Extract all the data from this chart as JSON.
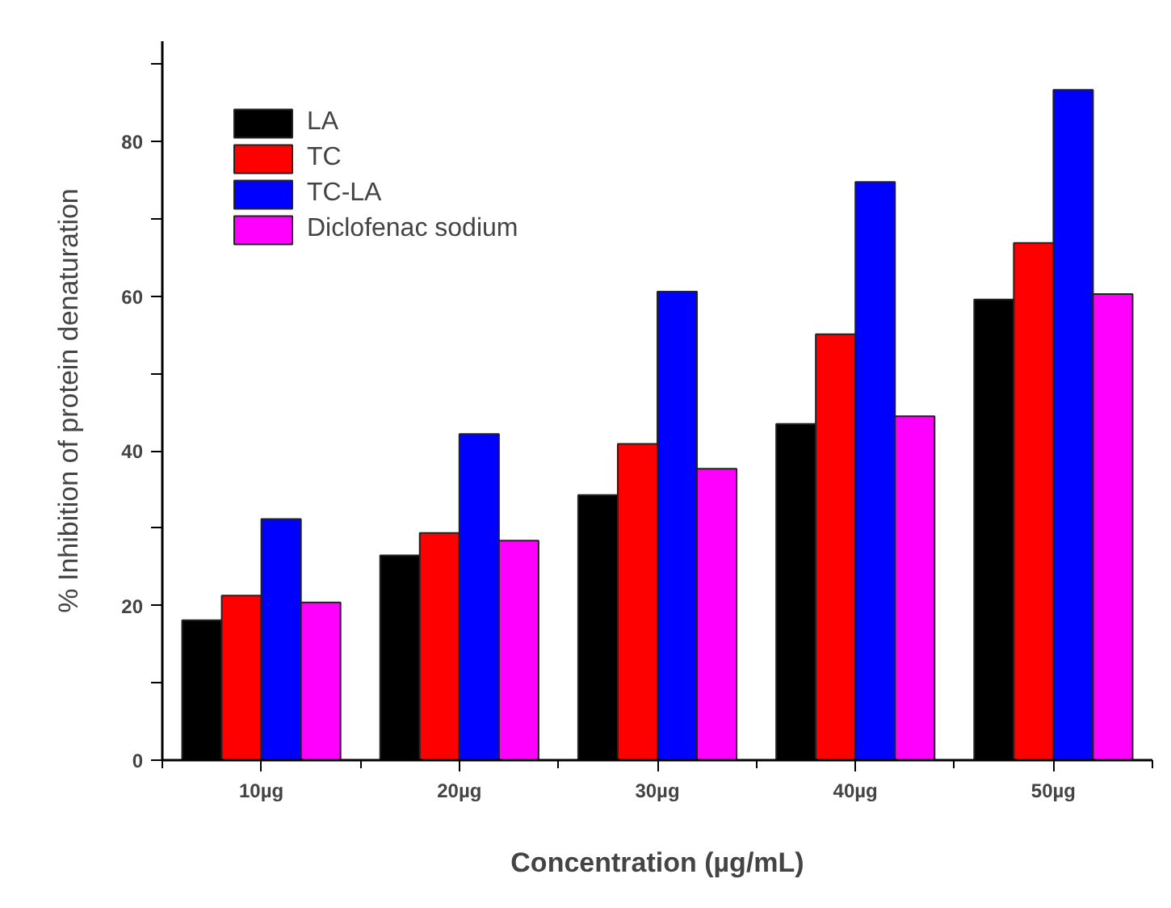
{
  "chart_data": {
    "type": "bar",
    "xlabel": "Concentration (µg/mL)",
    "ylabel": "% Inhibition of protein denaturation",
    "categories": [
      "10µg",
      "20µg",
      "30µg",
      "40µg",
      "50µg"
    ],
    "series": [
      {
        "name": "LA",
        "color": "#000000",
        "values": [
          18.1,
          26.5,
          34.3,
          43.5,
          59.6
        ]
      },
      {
        "name": "TC",
        "color": "#ff0000",
        "values": [
          21.3,
          29.4,
          40.9,
          55.1,
          66.9
        ]
      },
      {
        "name": "TC-LA",
        "color": "#0000ff",
        "values": [
          31.2,
          42.2,
          60.6,
          74.8,
          86.7
        ]
      },
      {
        "name": "Diclofenac sodium",
        "color": "#ff00ff",
        "values": [
          20.4,
          28.4,
          37.7,
          44.5,
          60.3
        ]
      }
    ],
    "ylim": [
      0,
      93
    ],
    "yticks": [
      0,
      {
        "value": 10,
        "label": null
      },
      20,
      {
        "value": 30,
        "label": null
      },
      40,
      {
        "value": 50,
        "label": null
      },
      60,
      {
        "value": 70,
        "label": null
      },
      80,
      {
        "value": 90,
        "label": null
      }
    ],
    "grid": false,
    "legend": "top left"
  }
}
